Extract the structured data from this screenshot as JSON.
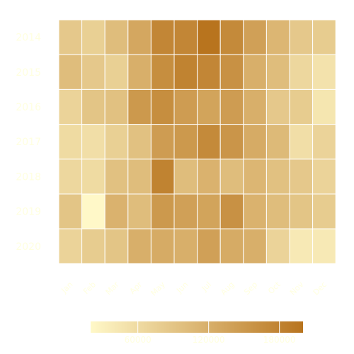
{
  "chart_data": {
    "type": "heatmap",
    "x_categories": [
      "Jan",
      "Feb",
      "Mar",
      "Apr",
      "May",
      "Jun",
      "Jul",
      "Aug",
      "Sep",
      "Oct",
      "Nov",
      "Dec"
    ],
    "y_categories": [
      "2014",
      "2015",
      "2016",
      "2017",
      "2018",
      "2019",
      "2020"
    ],
    "values": [
      [
        85000,
        75000,
        100000,
        130000,
        175000,
        175000,
        200000,
        170000,
        140000,
        110000,
        85000,
        80000
      ],
      [
        100000,
        85000,
        75000,
        120000,
        165000,
        180000,
        175000,
        160000,
        120000,
        100000,
        65000,
        50000
      ],
      [
        70000,
        90000,
        95000,
        150000,
        165000,
        145000,
        135000,
        145000,
        120000,
        85000,
        80000,
        45000
      ],
      [
        60000,
        55000,
        75000,
        95000,
        145000,
        150000,
        170000,
        155000,
        125000,
        105000,
        55000,
        70000
      ],
      [
        65000,
        60000,
        95000,
        100000,
        180000,
        100000,
        115000,
        100000,
        110000,
        95000,
        85000,
        70000
      ],
      [
        90000,
        20000,
        115000,
        100000,
        150000,
        140000,
        135000,
        160000,
        115000,
        100000,
        90000,
        80000
      ],
      [
        70000,
        80000,
        90000,
        120000,
        125000,
        120000,
        140000,
        125000,
        120000,
        70000,
        40000,
        40000
      ]
    ],
    "colorbar": {
      "ticks": [
        60000,
        120000,
        180000
      ],
      "tick_labels": [
        "60000",
        "120000",
        "180000"
      ],
      "range": [
        20000,
        200000
      ],
      "low_color": "#FFF8C8",
      "high_color": "#B8741E"
    },
    "text_color": "#FFFFE0",
    "grid_line_color": "#FFFFFF"
  }
}
